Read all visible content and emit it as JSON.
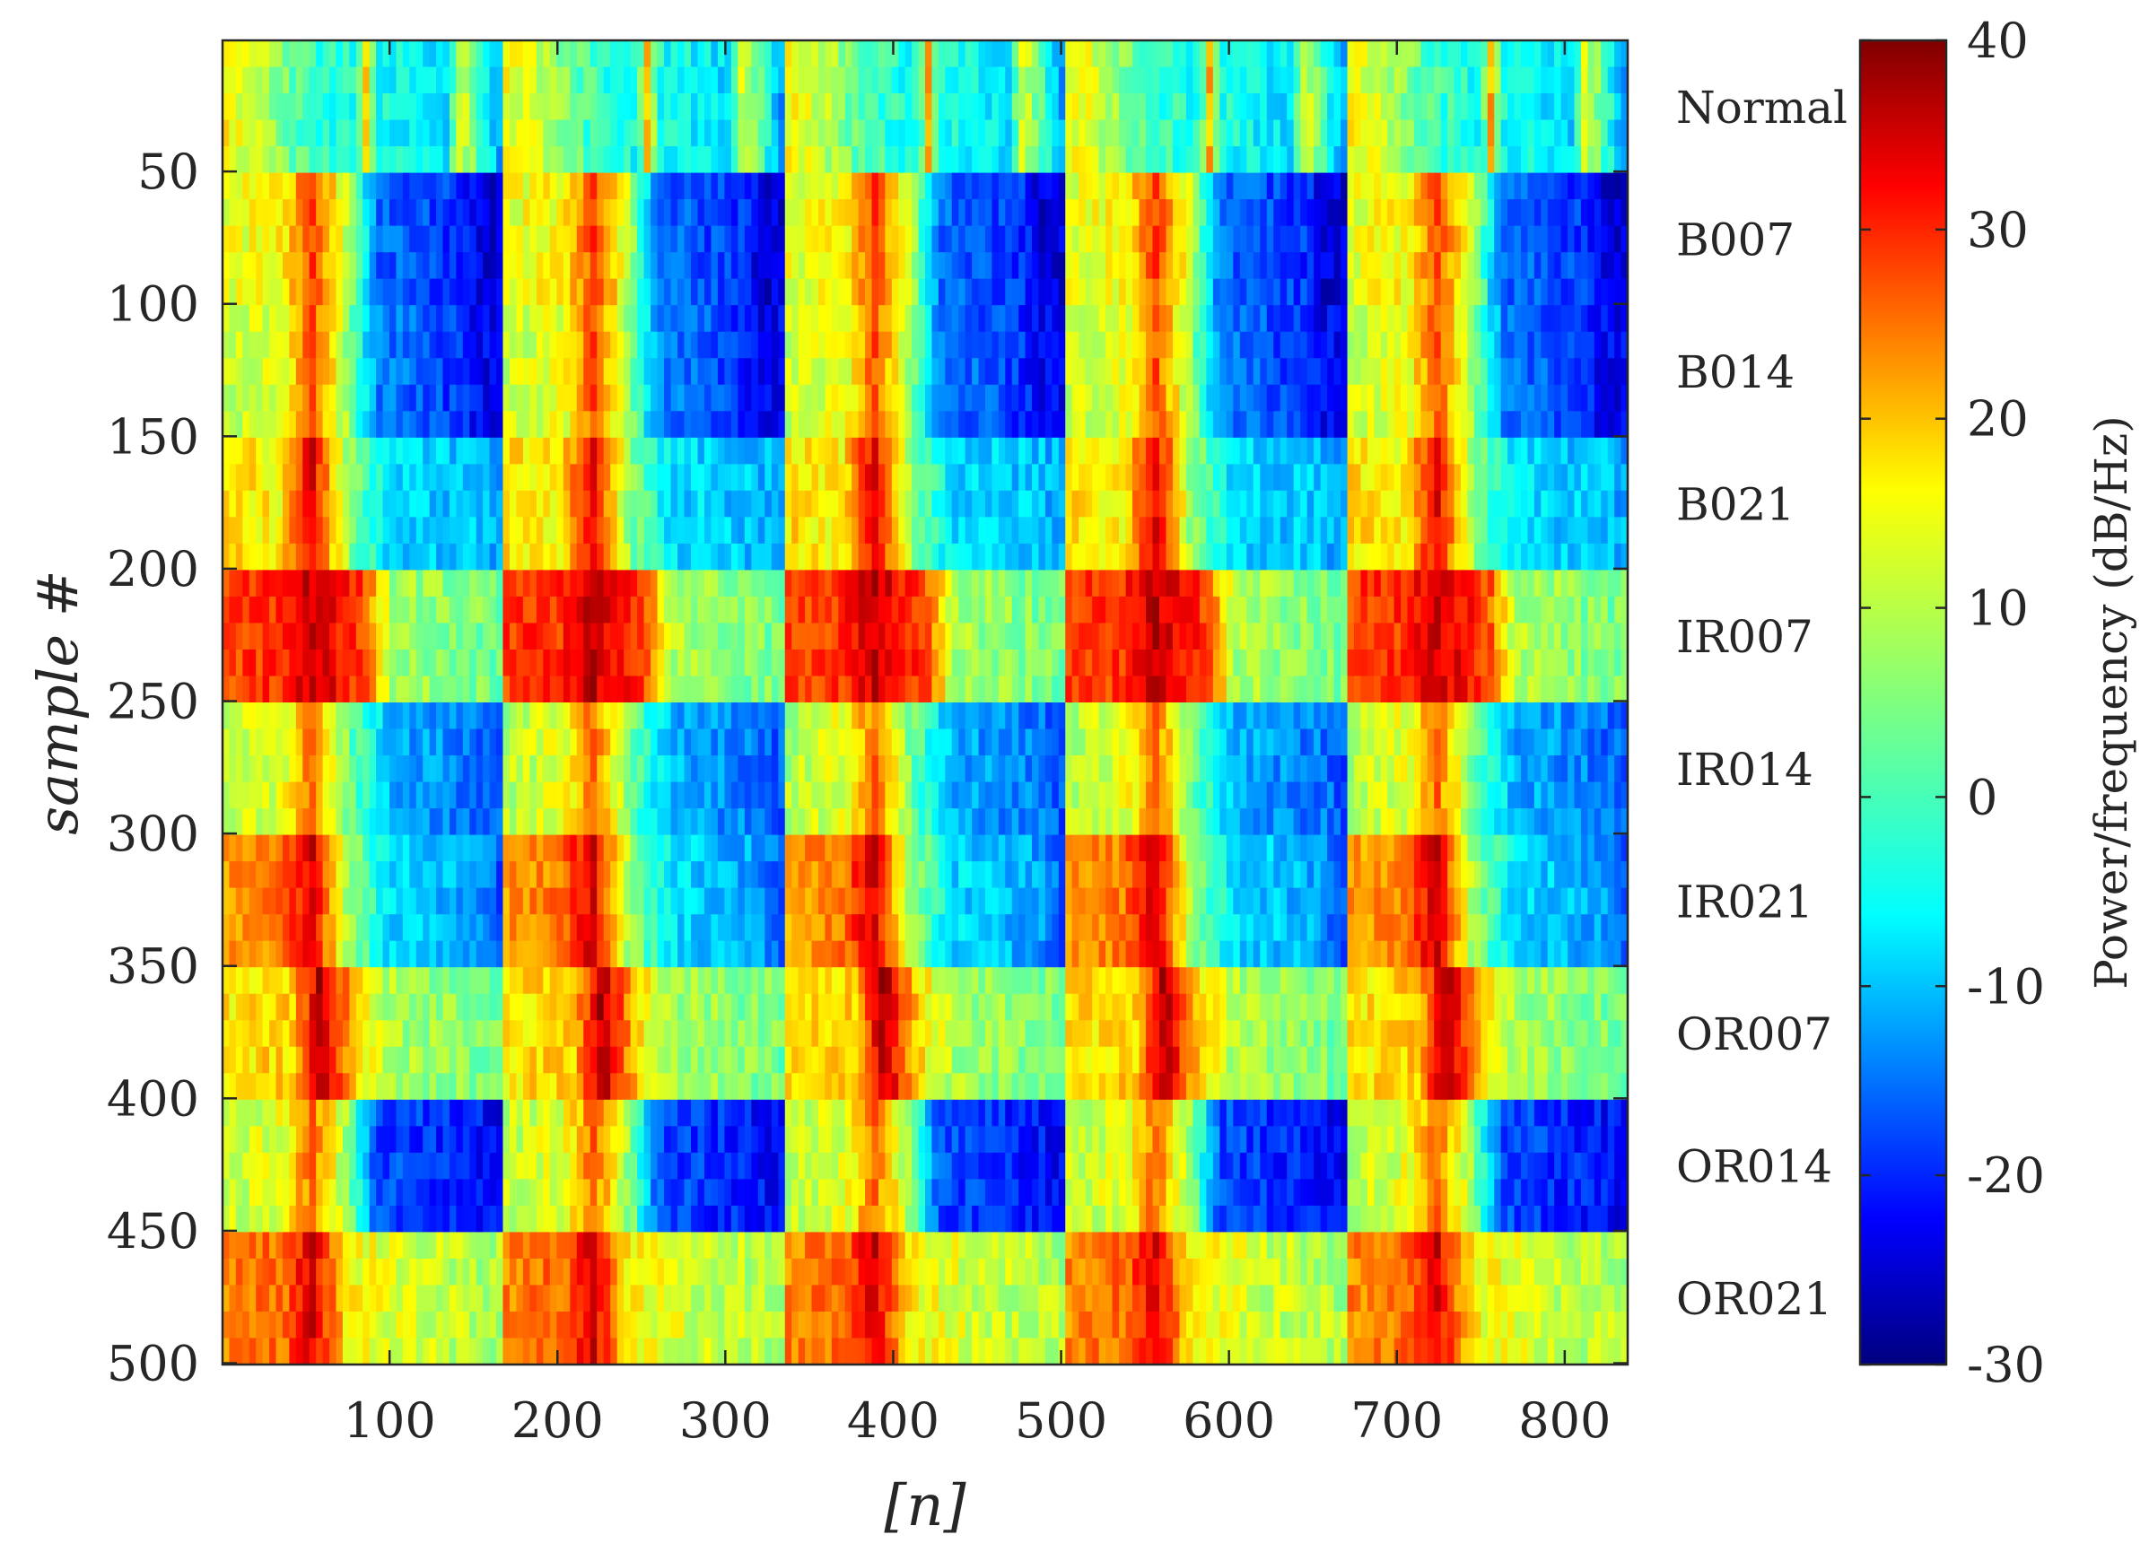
{
  "chart_data": {
    "type": "heatmap",
    "title": "",
    "xlabel": "[n]",
    "ylabel": "sample #",
    "xlim": [
      1,
      837
    ],
    "ylim": [
      1,
      500
    ],
    "y_reversed": true,
    "xticks": [
      100,
      200,
      300,
      400,
      500,
      600,
      700,
      800
    ],
    "yticks": [
      50,
      100,
      150,
      200,
      250,
      300,
      350,
      400,
      450,
      500
    ],
    "x_segments": [
      [
        1,
        167
      ],
      [
        168,
        335
      ],
      [
        336,
        502
      ],
      [
        503,
        670
      ],
      [
        671,
        837
      ]
    ],
    "classes": [
      {
        "name": "Normal",
        "rows": [
          1,
          50
        ]
      },
      {
        "name": "B007",
        "rows": [
          51,
          100
        ]
      },
      {
        "name": "B014",
        "rows": [
          101,
          150
        ]
      },
      {
        "name": "B021",
        "rows": [
          151,
          200
        ]
      },
      {
        "name": "IR007",
        "rows": [
          201,
          250
        ]
      },
      {
        "name": "IR014",
        "rows": [
          251,
          300
        ]
      },
      {
        "name": "IR021",
        "rows": [
          301,
          350
        ]
      },
      {
        "name": "OR007",
        "rows": [
          351,
          400
        ]
      },
      {
        "name": "OR014",
        "rows": [
          401,
          450
        ]
      },
      {
        "name": "OR021",
        "rows": [
          451,
          500
        ]
      }
    ],
    "class_labels": [
      "Normal",
      "B007",
      "B014",
      "B021",
      "IR007",
      "IR014",
      "IR021",
      "OR007",
      "OR014",
      "OR021"
    ],
    "colorbar": {
      "label": "Power/frequency (dB/Hz)",
      "limits": [
        -30,
        40
      ],
      "ticks": [
        40,
        30,
        20,
        10,
        0,
        -10,
        -20,
        -30
      ],
      "tick_labels": [
        "40",
        "30",
        "20",
        "10",
        "0",
        "-10",
        "-20",
        "-30"
      ],
      "colormap": "jet"
    },
    "grid": false,
    "legend": "none"
  }
}
